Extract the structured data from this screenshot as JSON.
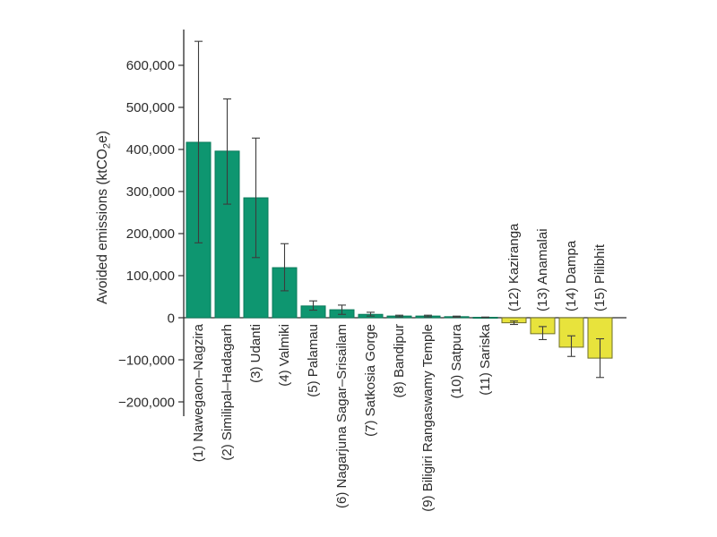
{
  "chart_data": {
    "type": "bar",
    "title": "",
    "xlabel": "",
    "ylabel": "Avoided emissions (ktCO2e)",
    "ylabel_parts": {
      "prefix": "Avoided emissions (ktCO",
      "sub": "2",
      "suffix": "e)"
    },
    "categories": [
      "(1) Nawegaon–Nagzira",
      "(2) Similipal–Hadagarh",
      "(3) Udanti",
      "(4) Valmiki",
      "(5) Palamau",
      "(6) Nagarjuna Sagar–Srisailam",
      "(7) Satkosia Gorge",
      "(8) Bandipur",
      "(9) Biligiri Rangaswamy Temple",
      "(10) Satpura",
      "(11) Sariska",
      "(12) Kaziranga",
      "(13) Anamalai",
      "(14) Dampa",
      "(15) Pilibhit"
    ],
    "values": [
      417000,
      396000,
      285000,
      119000,
      28000,
      19000,
      8000,
      4000,
      4000,
      2500,
      1000,
      -12000,
      -38000,
      -70000,
      -96000
    ],
    "error_low": [
      178000,
      270000,
      143000,
      64000,
      18000,
      8000,
      4000,
      2000,
      2000,
      1200,
      400,
      -16000,
      -52000,
      -92000,
      -142000
    ],
    "error_high": [
      657000,
      520000,
      427000,
      176000,
      40000,
      30000,
      13000,
      6000,
      6000,
      3800,
      1600,
      -8000,
      -21000,
      -43000,
      -50000
    ],
    "yticks": [
      {
        "value": 600000,
        "label": "600,000"
      },
      {
        "value": 500000,
        "label": "500,000"
      },
      {
        "value": 400000,
        "label": "400,000"
      },
      {
        "value": 300000,
        "label": "300,000"
      },
      {
        "value": 200000,
        "label": "200,000"
      },
      {
        "value": 100000,
        "label": "100,000"
      },
      {
        "value": 0,
        "label": "0"
      },
      {
        "value": -100000,
        "label": "−100,000"
      },
      {
        "value": -200000,
        "label": "−200,000"
      }
    ],
    "ylim": [
      -234000,
      685000
    ],
    "grid": false,
    "legend": null,
    "colors": {
      "positive_fill": "#0e9670",
      "positive_stroke": "#0a7a5a",
      "negative_fill": "#e8e33c",
      "negative_stroke": "#6e6e28",
      "axis": "#2b2b2b",
      "error_bar": "#3c3c3c",
      "text": "#2b2b2b"
    }
  }
}
